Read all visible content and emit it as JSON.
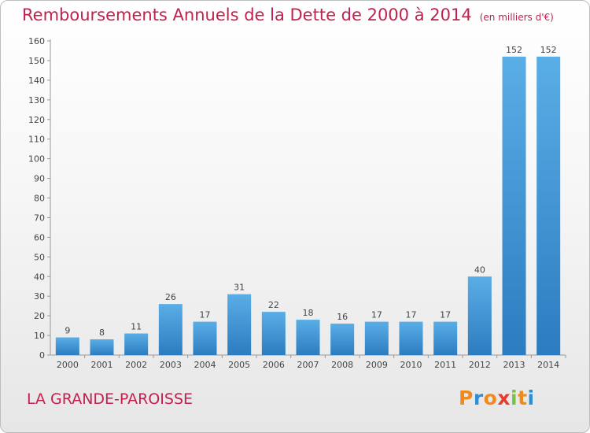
{
  "title": "Remboursements Annuels de la Dette de 2000 à 2014",
  "subtitle": "(en milliers d'€)",
  "commune": "LA GRANDE-PAROISSE",
  "logo": {
    "letters": [
      "P",
      "r",
      "o",
      "x",
      "i",
      "t",
      "i"
    ],
    "colors": [
      "#f18a1d",
      "#2b8fd6",
      "#f18a1d",
      "#e63b2e",
      "#7cc142",
      "#f18a1d",
      "#2b8fd6"
    ]
  },
  "colors": {
    "title": "#c1214c",
    "bar_light": "#5aaee6",
    "bar_dark": "#2b7cc0"
  },
  "chart_data": {
    "type": "bar",
    "title": "Remboursements Annuels de la Dette de 2000 à 2014",
    "subtitle": "(en milliers d'€)",
    "xlabel": "",
    "ylabel": "",
    "categories": [
      "2000",
      "2001",
      "2002",
      "2003",
      "2004",
      "2005",
      "2006",
      "2007",
      "2008",
      "2009",
      "2010",
      "2011",
      "2012",
      "2013",
      "2014"
    ],
    "values": [
      9,
      8,
      11,
      26,
      17,
      31,
      22,
      18,
      16,
      17,
      17,
      17,
      40,
      152,
      152
    ],
    "ylim": [
      0,
      160
    ],
    "yticks": [
      0,
      10,
      20,
      30,
      40,
      50,
      60,
      70,
      80,
      90,
      100,
      110,
      120,
      130,
      140,
      150,
      160
    ],
    "grid": false,
    "data_labels": true
  }
}
